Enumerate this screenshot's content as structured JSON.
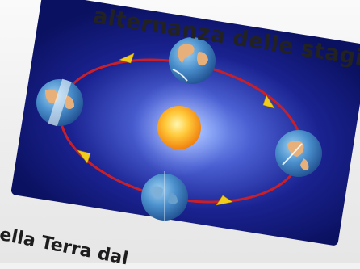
{
  "title": "alternanza delle stagioni",
  "caption": "ella Terra dal",
  "colors": {
    "panel_dark": "#0c1466",
    "panel_glow": "#5a78e0",
    "orbit": "#c8202a",
    "arrow": "#f2cc1a",
    "sun_core": "#ffe45a",
    "sun_edge": "#f08a10",
    "ocean": "#3f86c8",
    "land": "#e7b07a"
  },
  "icons": [
    "sun-icon",
    "earth-icon",
    "orbit-arrow-icon"
  ]
}
